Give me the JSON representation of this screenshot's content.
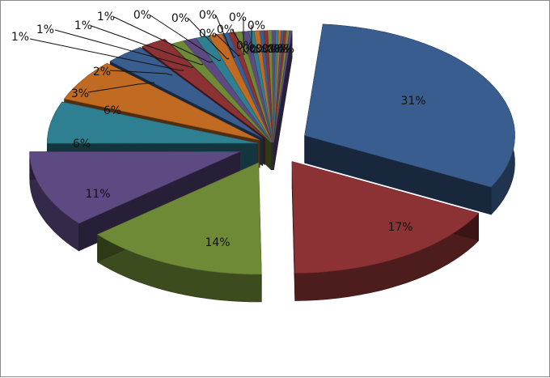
{
  "chart_data": {
    "type": "pie",
    "style": "3d-exploded",
    "legend": "none",
    "title": "",
    "slices": [
      {
        "value": 31,
        "label": "31%",
        "color": "#3A5D8F"
      },
      {
        "value": 17,
        "label": "17%",
        "color": "#8C3234"
      },
      {
        "value": 14,
        "label": "14%",
        "color": "#6E8A36"
      },
      {
        "value": 11,
        "label": "11%",
        "color": "#5E4A82"
      },
      {
        "value": 6,
        "label": "6%",
        "color": "#2E7F92"
      },
      {
        "value": 6,
        "label": "6%",
        "color": "#C06A22"
      },
      {
        "value": 3,
        "label": "3%",
        "color": "#3A5D8F"
      },
      {
        "value": 2,
        "label": "2%",
        "color": "#8C3234"
      },
      {
        "value": 1,
        "label": "1%",
        "color": "#6E8A36"
      },
      {
        "value": 1,
        "label": "1%",
        "color": "#5E4A82"
      },
      {
        "value": 1,
        "label": "1%",
        "color": "#2E7F92"
      },
      {
        "value": 1,
        "label": "1%",
        "color": "#C06A22"
      },
      {
        "value": 0.5,
        "label": "0%",
        "color": "#3A5D8F"
      },
      {
        "value": 0.5,
        "label": "0%",
        "color": "#8C3234"
      },
      {
        "value": 0.5,
        "label": "0%",
        "color": "#6E8A36"
      },
      {
        "value": 0.5,
        "label": "0%",
        "color": "#5E4A82"
      },
      {
        "value": 0.4,
        "label": "0%",
        "color": "#2E7F92"
      },
      {
        "value": 0.4,
        "label": "0%",
        "color": "#C06A22"
      },
      {
        "value": 0.3,
        "label": "0%",
        "color": "#3A5D8F"
      },
      {
        "value": 0.3,
        "label": "0%",
        "color": "#8C3234"
      },
      {
        "value": 0.3,
        "label": "0%",
        "color": "#6E8A36"
      },
      {
        "value": 0.3,
        "label": "0%",
        "color": "#5E4A82"
      },
      {
        "value": 0.2,
        "label": "0%",
        "color": "#2E7F92"
      },
      {
        "value": 0.2,
        "label": "0%",
        "color": "#C06A22"
      },
      {
        "value": 0.2,
        "label": "0%",
        "color": "#3A5D8F"
      },
      {
        "value": 0.2,
        "label": "0%",
        "color": "#8C3234"
      },
      {
        "value": 0.2,
        "label": "0%",
        "color": "#6E8A36"
      },
      {
        "value": 0.2,
        "label": "0%",
        "color": "#5E4A82"
      }
    ]
  }
}
